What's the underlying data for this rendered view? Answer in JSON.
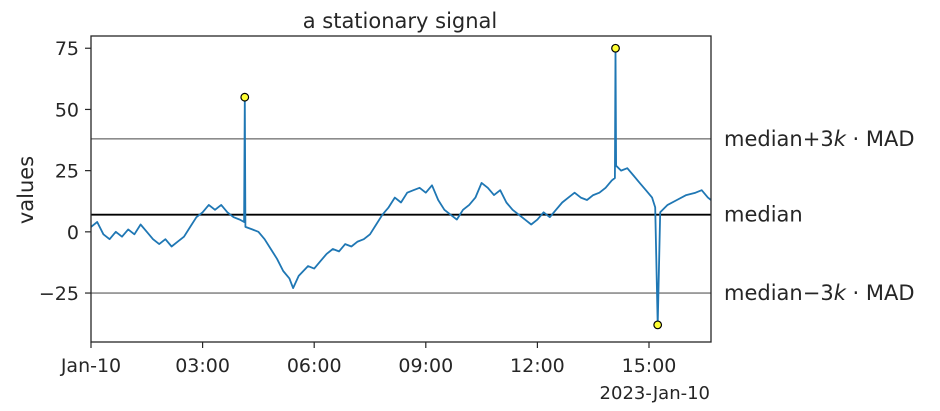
{
  "chart_data": {
    "type": "line",
    "title": "a stationary signal",
    "ylabel": "values",
    "xlabel": "",
    "x_offset_label": "2023-Jan-10",
    "xlim": [
      "2023-01-10 00:00",
      "2023-01-10 16:40"
    ],
    "ylim": [
      -45,
      80
    ],
    "x_ticks": [
      {
        "t": "2023-01-10 00:00",
        "label": "Jan-10"
      },
      {
        "t": "2023-01-10 03:00",
        "label": "03:00"
      },
      {
        "t": "2023-01-10 06:00",
        "label": "06:00"
      },
      {
        "t": "2023-01-10 09:00",
        "label": "09:00"
      },
      {
        "t": "2023-01-10 12:00",
        "label": "12:00"
      },
      {
        "t": "2023-01-10 15:00",
        "label": "15:00"
      }
    ],
    "y_ticks": [
      75,
      50,
      25,
      0,
      -25
    ],
    "y_tick_labels": [
      "75",
      "50",
      "25",
      "0",
      "−25"
    ],
    "reference_lines": [
      {
        "value": 38,
        "label_pre": "median+3",
        "label_k": "k",
        "label_post": " · MAD",
        "color": "#8c8c8c"
      },
      {
        "value": 7,
        "label_pre": "median",
        "label_k": "",
        "label_post": "",
        "color": "#000000"
      },
      {
        "value": -25,
        "label_pre": "median−3",
        "label_k": "k",
        "label_post": " · MAD",
        "color": "#8c8c8c"
      }
    ],
    "series": [
      {
        "color": "#1f77b4",
        "points": [
          [
            "2023-01-10 00:00",
            2
          ],
          [
            "2023-01-10 00:10",
            4
          ],
          [
            "2023-01-10 00:20",
            -1
          ],
          [
            "2023-01-10 00:30",
            -3
          ],
          [
            "2023-01-10 00:40",
            0
          ],
          [
            "2023-01-10 00:50",
            -2
          ],
          [
            "2023-01-10 01:00",
            1
          ],
          [
            "2023-01-10 01:10",
            -1
          ],
          [
            "2023-01-10 01:20",
            3
          ],
          [
            "2023-01-10 01:30",
            0
          ],
          [
            "2023-01-10 01:40",
            -3
          ],
          [
            "2023-01-10 01:50",
            -5
          ],
          [
            "2023-01-10 02:00",
            -3
          ],
          [
            "2023-01-10 02:10",
            -6
          ],
          [
            "2023-01-10 02:20",
            -4
          ],
          [
            "2023-01-10 02:30",
            -2
          ],
          [
            "2023-01-10 02:40",
            2
          ],
          [
            "2023-01-10 02:50",
            6
          ],
          [
            "2023-01-10 03:00",
            8
          ],
          [
            "2023-01-10 03:10",
            11
          ],
          [
            "2023-01-10 03:20",
            9
          ],
          [
            "2023-01-10 03:30",
            11
          ],
          [
            "2023-01-10 03:40",
            8
          ],
          [
            "2023-01-10 03:50",
            6
          ],
          [
            "2023-01-10 04:00",
            5
          ],
          [
            "2023-01-10 04:07",
            4
          ],
          [
            "2023-01-10 04:08",
            55
          ],
          [
            "2023-01-10 04:09",
            2
          ],
          [
            "2023-01-10 04:20",
            1
          ],
          [
            "2023-01-10 04:30",
            0
          ],
          [
            "2023-01-10 04:40",
            -3
          ],
          [
            "2023-01-10 04:50",
            -7
          ],
          [
            "2023-01-10 05:00",
            -11
          ],
          [
            "2023-01-10 05:10",
            -16
          ],
          [
            "2023-01-10 05:20",
            -19
          ],
          [
            "2023-01-10 05:26",
            -23
          ],
          [
            "2023-01-10 05:35",
            -18
          ],
          [
            "2023-01-10 05:50",
            -14
          ],
          [
            "2023-01-10 06:00",
            -15
          ],
          [
            "2023-01-10 06:10",
            -12
          ],
          [
            "2023-01-10 06:20",
            -9
          ],
          [
            "2023-01-10 06:30",
            -7
          ],
          [
            "2023-01-10 06:40",
            -8
          ],
          [
            "2023-01-10 06:50",
            -5
          ],
          [
            "2023-01-10 07:00",
            -6
          ],
          [
            "2023-01-10 07:10",
            -4
          ],
          [
            "2023-01-10 07:20",
            -3
          ],
          [
            "2023-01-10 07:30",
            -1
          ],
          [
            "2023-01-10 07:40",
            3
          ],
          [
            "2023-01-10 07:50",
            7
          ],
          [
            "2023-01-10 08:00",
            10
          ],
          [
            "2023-01-10 08:10",
            14
          ],
          [
            "2023-01-10 08:20",
            12
          ],
          [
            "2023-01-10 08:30",
            16
          ],
          [
            "2023-01-10 08:40",
            17
          ],
          [
            "2023-01-10 08:50",
            18
          ],
          [
            "2023-01-10 09:00",
            16
          ],
          [
            "2023-01-10 09:10",
            19
          ],
          [
            "2023-01-10 09:20",
            13
          ],
          [
            "2023-01-10 09:30",
            9
          ],
          [
            "2023-01-10 09:40",
            7
          ],
          [
            "2023-01-10 09:50",
            5
          ],
          [
            "2023-01-10 10:00",
            9
          ],
          [
            "2023-01-10 10:10",
            11
          ],
          [
            "2023-01-10 10:20",
            14
          ],
          [
            "2023-01-10 10:30",
            20
          ],
          [
            "2023-01-10 10:40",
            18
          ],
          [
            "2023-01-10 10:50",
            15
          ],
          [
            "2023-01-10 11:00",
            17
          ],
          [
            "2023-01-10 11:10",
            12
          ],
          [
            "2023-01-10 11:20",
            9
          ],
          [
            "2023-01-10 11:30",
            7
          ],
          [
            "2023-01-10 11:40",
            5
          ],
          [
            "2023-01-10 11:50",
            3
          ],
          [
            "2023-01-10 12:00",
            5
          ],
          [
            "2023-01-10 12:10",
            8
          ],
          [
            "2023-01-10 12:20",
            6
          ],
          [
            "2023-01-10 12:30",
            9
          ],
          [
            "2023-01-10 12:40",
            12
          ],
          [
            "2023-01-10 12:50",
            14
          ],
          [
            "2023-01-10 13:00",
            16
          ],
          [
            "2023-01-10 13:10",
            14
          ],
          [
            "2023-01-10 13:20",
            13
          ],
          [
            "2023-01-10 13:30",
            15
          ],
          [
            "2023-01-10 13:40",
            16
          ],
          [
            "2023-01-10 13:50",
            18
          ],
          [
            "2023-01-10 14:00",
            21
          ],
          [
            "2023-01-10 14:05",
            22
          ],
          [
            "2023-01-10 14:06",
            75
          ],
          [
            "2023-01-10 14:07",
            27
          ],
          [
            "2023-01-10 14:15",
            25
          ],
          [
            "2023-01-10 14:25",
            26
          ],
          [
            "2023-01-10 14:35",
            23
          ],
          [
            "2023-01-10 14:45",
            20
          ],
          [
            "2023-01-10 14:55",
            17
          ],
          [
            "2023-01-10 15:05",
            14
          ],
          [
            "2023-01-10 15:10",
            10
          ],
          [
            "2023-01-10 15:14",
            -38
          ],
          [
            "2023-01-10 15:18",
            8
          ],
          [
            "2023-01-10 15:30",
            11
          ],
          [
            "2023-01-10 15:45",
            13
          ],
          [
            "2023-01-10 16:00",
            15
          ],
          [
            "2023-01-10 16:15",
            16
          ],
          [
            "2023-01-10 16:25",
            17
          ],
          [
            "2023-01-10 16:35",
            14
          ],
          [
            "2023-01-10 16:40",
            13
          ]
        ]
      }
    ],
    "outliers": [
      {
        "t": "2023-01-10 04:08",
        "v": 55
      },
      {
        "t": "2023-01-10 14:06",
        "v": 75
      },
      {
        "t": "2023-01-10 15:14",
        "v": -38
      }
    ],
    "outlier_fill": "#ffff33",
    "grid": false
  }
}
